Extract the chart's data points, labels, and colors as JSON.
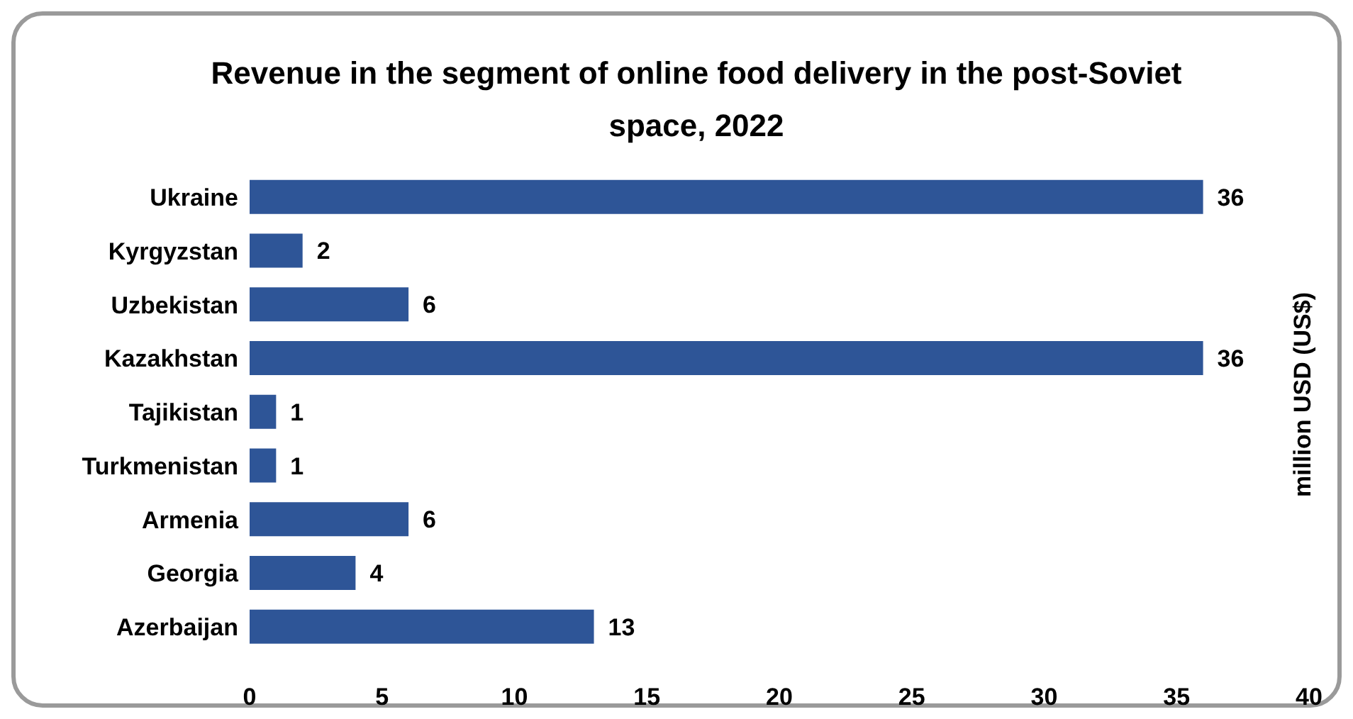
{
  "chart_data": {
    "type": "bar",
    "orientation": "horizontal",
    "title": "Revenue in the segment of online food delivery in the post-Soviet space, 2022",
    "ylabel": "million USD (US$)",
    "categories": [
      "Ukraine",
      "Kyrgyzstan",
      "Uzbekistan",
      "Kazakhstan",
      "Tajikistan",
      "Turkmenistan",
      "Armenia",
      "Georgia",
      "Azerbaijan"
    ],
    "values": [
      36,
      2,
      6,
      36,
      1,
      1,
      6,
      4,
      13
    ],
    "color": "#2e5597",
    "xlim": [
      0,
      40
    ],
    "xticks": [
      0,
      5,
      10,
      15,
      20,
      25,
      30,
      35,
      40
    ],
    "data_labels": true,
    "grid": false,
    "legend": false
  }
}
